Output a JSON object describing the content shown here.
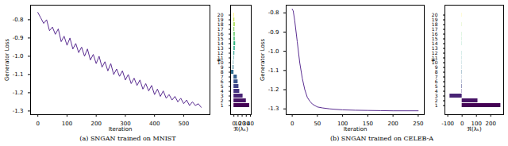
{
  "chart_data": [
    {
      "type": "line",
      "x_label": "Iteration",
      "y_label": "Generator Loss",
      "color": "#5a2d91",
      "x": [
        0,
        10,
        20,
        30,
        40,
        50,
        60,
        70,
        80,
        90,
        100,
        110,
        120,
        130,
        140,
        150,
        160,
        170,
        180,
        190,
        200,
        210,
        220,
        230,
        240,
        250,
        260,
        270,
        280,
        290,
        300,
        310,
        320,
        330,
        340,
        350,
        360,
        370,
        380,
        390,
        400,
        410,
        420,
        430,
        440,
        450,
        460,
        470,
        480,
        490,
        500,
        510,
        520,
        530,
        540,
        550,
        560
      ],
      "values": [
        -0.76,
        -0.79,
        -0.82,
        -0.8,
        -0.86,
        -0.84,
        -0.88,
        -0.85,
        -0.92,
        -0.89,
        -0.94,
        -0.9,
        -0.96,
        -0.93,
        -0.98,
        -0.95,
        -1.0,
        -0.96,
        -1.02,
        -0.99,
        -1.04,
        -1.0,
        -1.06,
        -1.03,
        -1.08,
        -1.04,
        -1.1,
        -1.07,
        -1.11,
        -1.08,
        -1.13,
        -1.1,
        -1.15,
        -1.12,
        -1.16,
        -1.13,
        -1.18,
        -1.15,
        -1.19,
        -1.16,
        -1.21,
        -1.18,
        -1.22,
        -1.19,
        -1.23,
        -1.21,
        -1.24,
        -1.22,
        -1.25,
        -1.23,
        -1.26,
        -1.24,
        -1.27,
        -1.25,
        -1.27,
        -1.26,
        -1.28
      ],
      "xlim": [
        -25,
        590
      ],
      "xticks": [
        0,
        100,
        200,
        300,
        400,
        500
      ],
      "ylim": [
        -1.32,
        -0.72
      ],
      "yticks": [
        -0.8,
        -0.9,
        {
          "value": -1,
          "label": "-1.0"
        },
        -1.1,
        -1.2,
        -1.3
      ],
      "grid": false
    },
    {
      "type": "bar",
      "orientation": "horizontal",
      "x_label": "ℜ(λₖ)",
      "y_label": "K",
      "categories": [
        1,
        2,
        3,
        4,
        5,
        6,
        7,
        8,
        9,
        10,
        11,
        12,
        13,
        14,
        15,
        16,
        17,
        18,
        19,
        20
      ],
      "values": [
        38,
        30,
        22,
        14,
        12,
        10,
        8,
        -6,
        -2,
        -1,
        1,
        2,
        3,
        4,
        3,
        3,
        2,
        3,
        2,
        1
      ],
      "colors": [
        "#440154",
        "#471365",
        "#482475",
        "#463480",
        "#414487",
        "#3b528b",
        "#355f8d",
        "#2f6c8e",
        "#2a788e",
        "#25848e",
        "#21918c",
        "#1e9c89",
        "#22a884",
        "#2fb47c",
        "#44bf70",
        "#5ec962",
        "#7ad151",
        "#9bd93c",
        "#bddf26",
        "#fde725"
      ],
      "xlim": [
        -8,
        42
      ],
      "xticks": [
        0,
        10,
        20,
        30,
        40
      ],
      "grid": false
    },
    {
      "type": "line",
      "x_label": "Iteration",
      "y_label": "Generator Loss",
      "color": "#5a2d91",
      "x": [
        0,
        2,
        5,
        10,
        15,
        20,
        25,
        30,
        35,
        40,
        50,
        60,
        75,
        100,
        125,
        150,
        175,
        200,
        225,
        250
      ],
      "values": [
        -0.78,
        -0.79,
        -0.84,
        -0.95,
        -1.06,
        -1.14,
        -1.2,
        -1.24,
        -1.26,
        -1.275,
        -1.29,
        -1.295,
        -1.3,
        -1.305,
        -1.307,
        -1.308,
        -1.309,
        -1.31,
        -1.31,
        -1.31
      ],
      "xlim": [
        -12,
        262
      ],
      "xticks": [
        0,
        50,
        100,
        150,
        200,
        250
      ],
      "ylim": [
        -1.33,
        -0.76
      ],
      "yticks": [
        -0.8,
        -0.9,
        {
          "value": -1,
          "label": "-1.0"
        },
        -1.1,
        -1.2,
        -1.3
      ],
      "grid": false
    },
    {
      "type": "bar",
      "orientation": "horizontal",
      "x_label": "ℜ(λₖ)",
      "y_label": "K",
      "categories": [
        1,
        2,
        3,
        4,
        5,
        6,
        7,
        8,
        9,
        10,
        11,
        12,
        13,
        14,
        15,
        16,
        17,
        18,
        19,
        20
      ],
      "values": [
        270,
        110,
        -85,
        2,
        -3,
        2,
        1,
        -2,
        1,
        1,
        -1,
        1,
        0,
        1,
        -1,
        1,
        0,
        1,
        0,
        1
      ],
      "colors": [
        "#440154",
        "#471365",
        "#482475",
        "#463480",
        "#414487",
        "#3b528b",
        "#355f8d",
        "#2f6c8e",
        "#2a788e",
        "#25848e",
        "#21918c",
        "#1e9c89",
        "#22a884",
        "#2fb47c",
        "#44bf70",
        "#5ec962",
        "#7ad151",
        "#9bd93c",
        "#bddf26",
        "#fde725"
      ],
      "xlim": [
        -120,
        290
      ],
      "xticks": [
        -100,
        0,
        100,
        200
      ],
      "grid": false
    }
  ],
  "captions": [
    "(a) SNGAN trained on MNIST",
    "(b) SNGAN trained on CELEB-A"
  ]
}
